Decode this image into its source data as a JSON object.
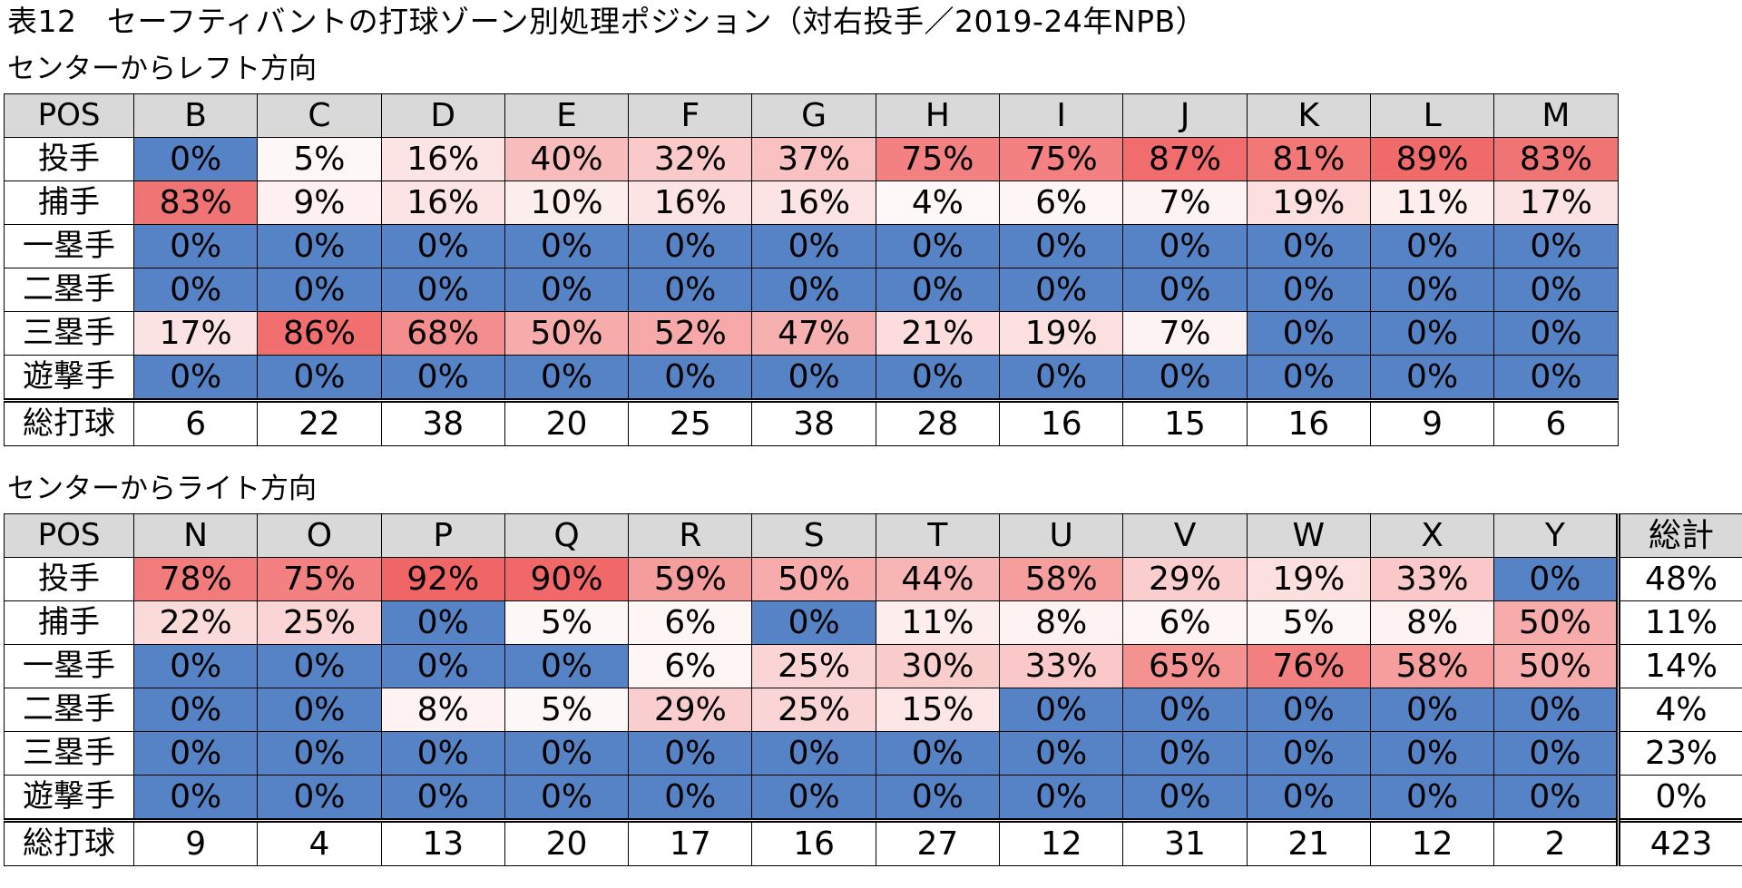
{
  "title": "表12　セーフティバントの打球ゾーン別処理ポジション（対右投手／2019-24年NPB）",
  "colors": {
    "header_bg": "#d9d9d9",
    "zero": "#5683c6",
    "low": "#ffffff",
    "high": "#f06565"
  },
  "sections": [
    {
      "caption": "センターからレフト方向",
      "pos_header": "POS",
      "zones": [
        "B",
        "C",
        "D",
        "E",
        "F",
        "G",
        "H",
        "I",
        "J",
        "K",
        "L",
        "M"
      ],
      "rows": [
        {
          "pos": "投手",
          "vals": [
            "0%",
            "5%",
            "16%",
            "40%",
            "32%",
            "37%",
            "75%",
            "75%",
            "87%",
            "81%",
            "89%",
            "83%"
          ]
        },
        {
          "pos": "捕手",
          "vals": [
            "83%",
            "9%",
            "16%",
            "10%",
            "16%",
            "16%",
            "4%",
            "6%",
            "7%",
            "19%",
            "11%",
            "17%"
          ]
        },
        {
          "pos": "一塁手",
          "vals": [
            "0%",
            "0%",
            "0%",
            "0%",
            "0%",
            "0%",
            "0%",
            "0%",
            "0%",
            "0%",
            "0%",
            "0%"
          ]
        },
        {
          "pos": "二塁手",
          "vals": [
            "0%",
            "0%",
            "0%",
            "0%",
            "0%",
            "0%",
            "0%",
            "0%",
            "0%",
            "0%",
            "0%",
            "0%"
          ]
        },
        {
          "pos": "三塁手",
          "vals": [
            "17%",
            "86%",
            "68%",
            "50%",
            "52%",
            "47%",
            "21%",
            "19%",
            "7%",
            "0%",
            "0%",
            "0%"
          ]
        },
        {
          "pos": "遊撃手",
          "vals": [
            "0%",
            "0%",
            "0%",
            "0%",
            "0%",
            "0%",
            "0%",
            "0%",
            "0%",
            "0%",
            "0%",
            "0%"
          ]
        }
      ],
      "totals_label": "総打球",
      "totals": [
        "6",
        "22",
        "38",
        "20",
        "25",
        "38",
        "28",
        "16",
        "15",
        "16",
        "9",
        "6"
      ]
    },
    {
      "caption": "センターからライト方向",
      "pos_header": "POS",
      "zones": [
        "N",
        "O",
        "P",
        "Q",
        "R",
        "S",
        "T",
        "U",
        "V",
        "W",
        "X",
        "Y"
      ],
      "sum_header": "総計",
      "rows": [
        {
          "pos": "投手",
          "vals": [
            "78%",
            "75%",
            "92%",
            "90%",
            "59%",
            "50%",
            "44%",
            "58%",
            "29%",
            "19%",
            "33%",
            "0%"
          ],
          "sum": "48%"
        },
        {
          "pos": "捕手",
          "vals": [
            "22%",
            "25%",
            "0%",
            "5%",
            "6%",
            "0%",
            "11%",
            "8%",
            "6%",
            "5%",
            "8%",
            "50%"
          ],
          "sum": "11%"
        },
        {
          "pos": "一塁手",
          "vals": [
            "0%",
            "0%",
            "0%",
            "0%",
            "6%",
            "25%",
            "30%",
            "33%",
            "65%",
            "76%",
            "58%",
            "50%"
          ],
          "sum": "14%"
        },
        {
          "pos": "二塁手",
          "vals": [
            "0%",
            "0%",
            "8%",
            "5%",
            "29%",
            "25%",
            "15%",
            "0%",
            "0%",
            "0%",
            "0%",
            "0%"
          ],
          "sum": "4%"
        },
        {
          "pos": "三塁手",
          "vals": [
            "0%",
            "0%",
            "0%",
            "0%",
            "0%",
            "0%",
            "0%",
            "0%",
            "0%",
            "0%",
            "0%",
            "0%"
          ],
          "sum": "23%"
        },
        {
          "pos": "遊撃手",
          "vals": [
            "0%",
            "0%",
            "0%",
            "0%",
            "0%",
            "0%",
            "0%",
            "0%",
            "0%",
            "0%",
            "0%",
            "0%"
          ],
          "sum": "0%"
        }
      ],
      "totals_label": "総打球",
      "totals": [
        "9",
        "4",
        "13",
        "20",
        "17",
        "16",
        "27",
        "12",
        "31",
        "21",
        "12",
        "2"
      ],
      "totals_sum": "423"
    }
  ]
}
